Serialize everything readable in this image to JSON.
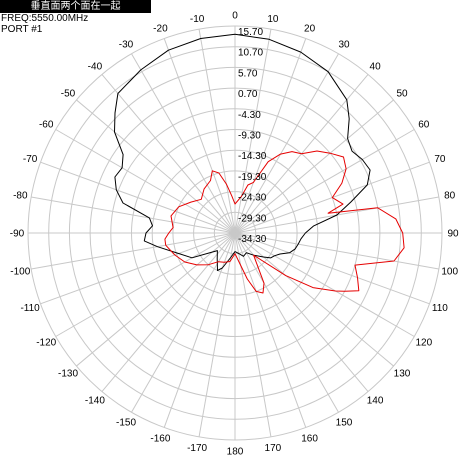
{
  "header": {
    "title": "垂直面两个面在一起",
    "freq": "FREQ:5550.00MHz",
    "port": "PORT #1"
  },
  "chart_data": {
    "type": "polar",
    "angle_direction": "clockwise",
    "zero_position": "top",
    "angle_tick_labels": [
      "0",
      "10",
      "20",
      "30",
      "40",
      "50",
      "60",
      "70",
      "80",
      "90",
      "100",
      "110",
      "120",
      "130",
      "140",
      "150",
      "160",
      "170",
      "180",
      "-170",
      "-160",
      "-150",
      "-140",
      "-130",
      "-120",
      "-110",
      "-100",
      "-90",
      "-80",
      "-70",
      "-60",
      "-50",
      "-40",
      "-30",
      "-20",
      "-10"
    ],
    "radial_tick_labels": [
      "15.70",
      "10.70",
      "5.70",
      "0.70",
      "-4.30",
      "-9.30",
      "-14.30",
      "-19.30",
      "-24.30",
      "-29.30",
      "-34.30"
    ],
    "radial_range": [
      -34.3,
      15.7
    ],
    "grid": true,
    "colors": {
      "series_black": "#000000",
      "series_red": "#e60000",
      "grid": "#c8c8c8"
    },
    "series": [
      {
        "color": "#000000",
        "points": [
          [
            0,
            13.7
          ],
          [
            10,
            13.2
          ],
          [
            20,
            12.2
          ],
          [
            30,
            10.7
          ],
          [
            40,
            7.7
          ],
          [
            45,
            4.7
          ],
          [
            50,
            1.2
          ],
          [
            55,
            0.2
          ],
          [
            60,
            1.2
          ],
          [
            65,
            1.7
          ],
          [
            70,
            -0.3
          ],
          [
            75,
            -5.3
          ],
          [
            80,
            -9.3
          ],
          [
            85,
            -15.3
          ],
          [
            90,
            -17.3
          ],
          [
            95,
            -18.3
          ],
          [
            100,
            -18.8
          ],
          [
            105,
            -19.3
          ],
          [
            110,
            -20.3
          ],
          [
            115,
            -22.3
          ],
          [
            120,
            -23.3
          ],
          [
            125,
            -23.8
          ],
          [
            130,
            -25.3
          ],
          [
            140,
            -27.3
          ],
          [
            150,
            -28.8
          ],
          [
            160,
            -28.3
          ],
          [
            170,
            -29.3
          ],
          [
            180,
            -29.8
          ],
          [
            -170,
            -28.3
          ],
          [
            -160,
            -25.3
          ],
          [
            -155,
            -24.3
          ],
          [
            -145,
            -26.8
          ],
          [
            -135,
            -28.3
          ],
          [
            -120,
            -22.3
          ],
          [
            -110,
            -19.8
          ],
          [
            -100,
            -15.3
          ],
          [
            -95,
            -12.3
          ],
          [
            -90,
            -12.8
          ],
          [
            -85,
            -14.3
          ],
          [
            -80,
            -13.3
          ],
          [
            -75,
            -6.3
          ],
          [
            -70,
            -3.8
          ],
          [
            -65,
            -2.3
          ],
          [
            -60,
            -2.8
          ],
          [
            -55,
            -1.3
          ],
          [
            -50,
            3.7
          ],
          [
            -45,
            6.7
          ],
          [
            -40,
            9.7
          ],
          [
            -30,
            11.2
          ],
          [
            -20,
            12.7
          ],
          [
            -10,
            13.4
          ]
        ]
      },
      {
        "color": "#e60000",
        "points": [
          [
            0,
            -27.3
          ],
          [
            10,
            -25.3
          ],
          [
            15,
            -22.3
          ],
          [
            20,
            -21.3
          ],
          [
            25,
            -15.3
          ],
          [
            30,
            -12.3
          ],
          [
            35,
            -10.3
          ],
          [
            40,
            -9.3
          ],
          [
            45,
            -6.3
          ],
          [
            50,
            -4.3
          ],
          [
            55,
            -2.3
          ],
          [
            60,
            -3.3
          ],
          [
            65,
            -5.8
          ],
          [
            70,
            -9.3
          ],
          [
            75,
            -7.3
          ],
          [
            78,
            -11.3
          ],
          [
            80,
            0.7
          ],
          [
            85,
            4.7
          ],
          [
            90,
            6.2
          ],
          [
            95,
            6.7
          ],
          [
            100,
            4.7
          ],
          [
            105,
            -4.3
          ],
          [
            110,
            -2.8
          ],
          [
            115,
            -1.3
          ],
          [
            118,
            -4.3
          ],
          [
            120,
            -6.3
          ],
          [
            125,
            -11.3
          ],
          [
            130,
            -18.3
          ],
          [
            140,
            -27.3
          ],
          [
            150,
            -20.3
          ],
          [
            155,
            -18.3
          ],
          [
            160,
            -19.3
          ],
          [
            165,
            -22.8
          ],
          [
            170,
            -26.3
          ],
          [
            180,
            -29.3
          ],
          [
            -170,
            -27.3
          ],
          [
            -160,
            -26.8
          ],
          [
            -150,
            -26.3
          ],
          [
            -140,
            -24.3
          ],
          [
            -130,
            -22.3
          ],
          [
            -120,
            -20.3
          ],
          [
            -110,
            -18.8
          ],
          [
            -100,
            -17.3
          ],
          [
            -95,
            -17.3
          ],
          [
            -90,
            -18.3
          ],
          [
            -85,
            -19.3
          ],
          [
            -75,
            -18.3
          ],
          [
            -65,
            -19.3
          ],
          [
            -55,
            -21.3
          ],
          [
            -45,
            -22.8
          ],
          [
            -35,
            -21.3
          ],
          [
            -25,
            -20.3
          ],
          [
            -20,
            -18.3
          ],
          [
            -15,
            -19.3
          ],
          [
            -10,
            -22.3
          ],
          [
            -5,
            -25.3
          ]
        ]
      }
    ]
  }
}
